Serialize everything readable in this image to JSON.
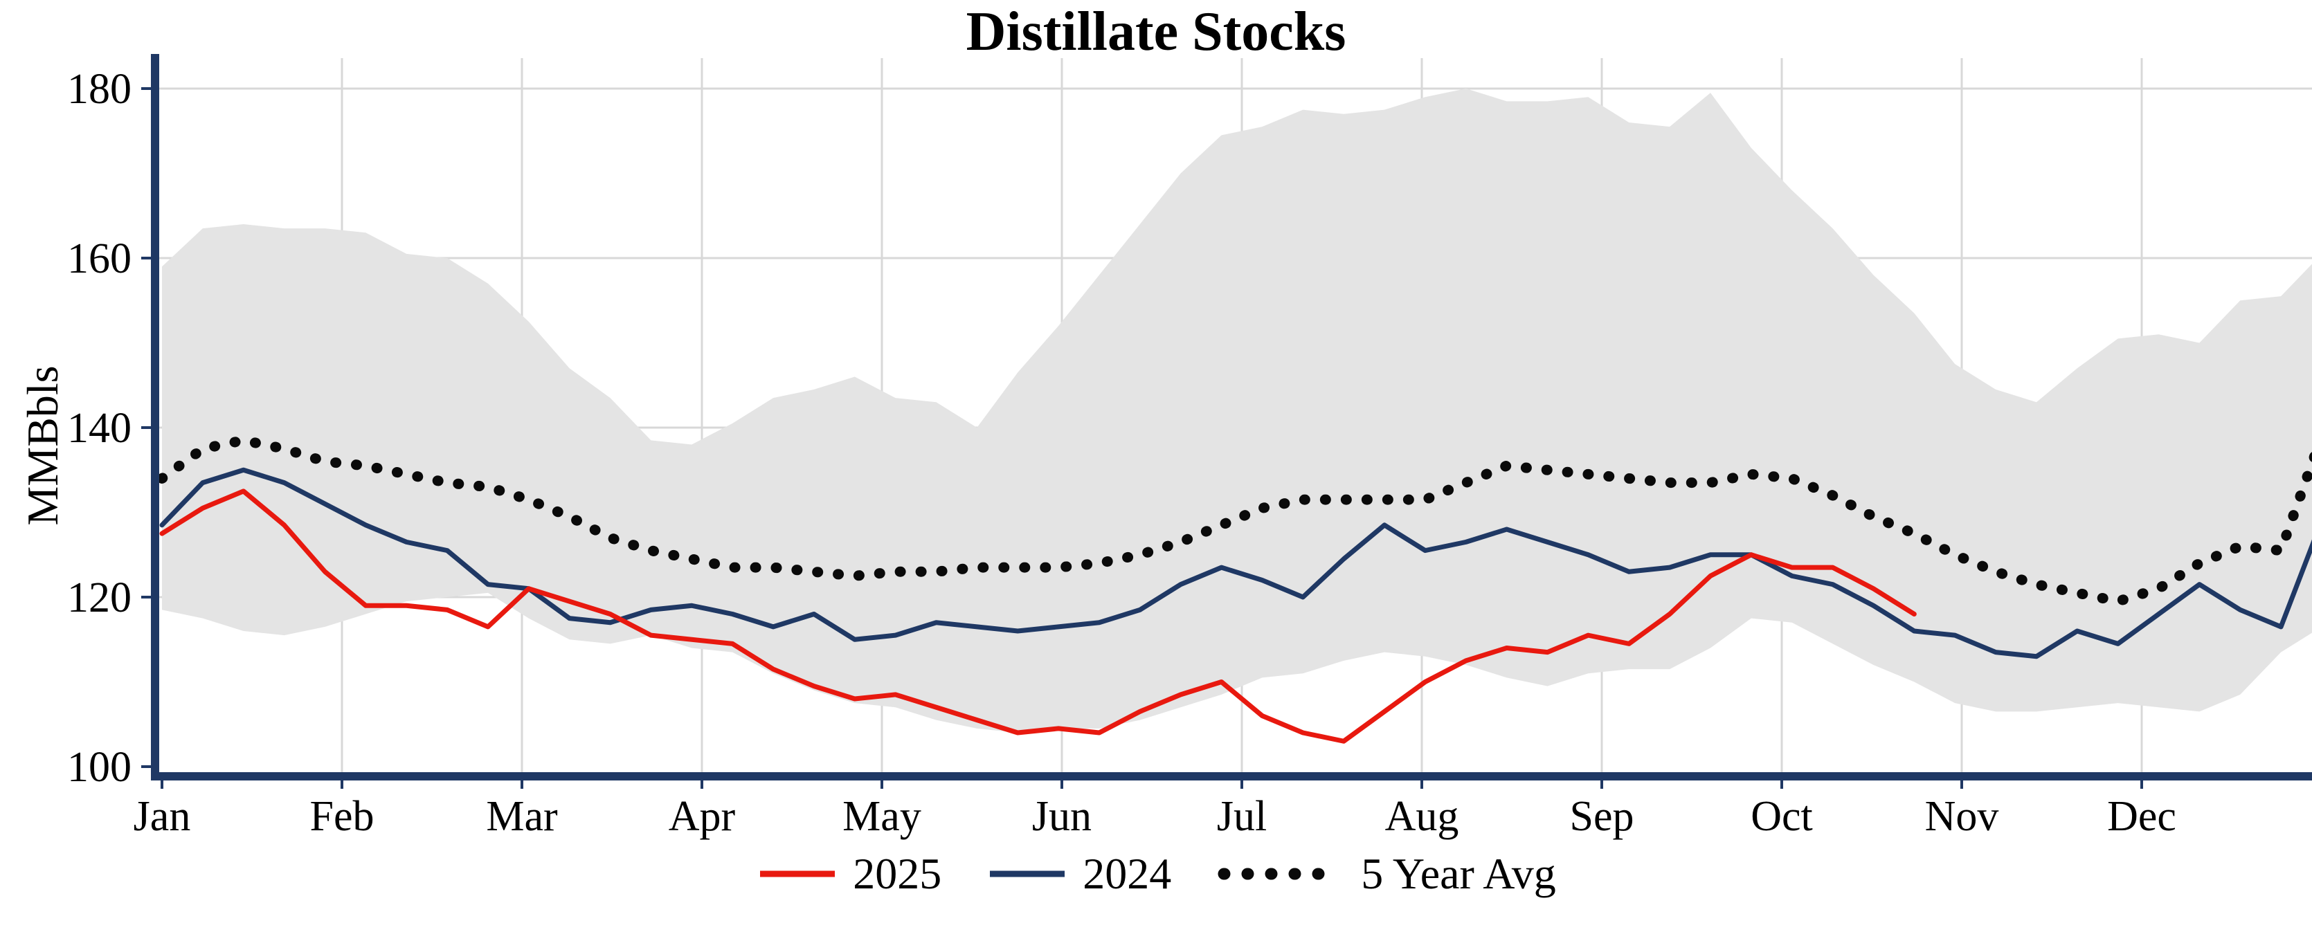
{
  "chart_data": {
    "type": "line",
    "title": "Distillate Stocks",
    "ylabel": "MMBbls",
    "x_tick_labels": [
      "Jan",
      "Feb",
      "Mar",
      "Apr",
      "May",
      "Jun",
      "Jul",
      "Aug",
      "Sep",
      "Oct",
      "Nov",
      "Dec"
    ],
    "y_ticks": [
      100,
      120,
      140,
      160,
      180
    ],
    "ylim": [
      98,
      183
    ],
    "x_sampling": "weekly",
    "grid": true,
    "legend_position": "bottom",
    "colors": {
      "axis": "#1f3864",
      "grid": "#d8d8d8",
      "band": "#e4e4e4",
      "red_2025": "#e8190f",
      "navy_2024": "#1f3864",
      "avg_dotted": "#0a0a0a"
    },
    "band": {
      "name": "5 Year Range",
      "fill": "#e4e4e4",
      "upper": [
        159,
        163.5,
        164,
        163.5,
        163.5,
        163,
        160.5,
        160,
        157,
        152.5,
        147,
        143.5,
        138.5,
        138,
        140.5,
        143.5,
        144.5,
        146,
        143.5,
        143,
        140,
        146.5,
        152,
        158,
        164,
        170,
        174.5,
        175.5,
        177.5,
        177,
        177.5,
        179,
        180,
        178.5,
        178.5,
        179,
        176,
        175.5,
        179.5,
        173,
        168,
        163.5,
        158,
        153.5,
        147.5,
        144.5,
        143,
        147,
        150.5,
        151,
        150,
        155,
        155.5,
        160.5
      ],
      "lower": [
        118.5,
        117.5,
        116,
        115.5,
        116.5,
        118,
        119.5,
        120,
        120.5,
        117.5,
        115,
        114.5,
        115.5,
        114,
        113.5,
        111,
        109,
        107.5,
        107,
        105.5,
        104.5,
        104,
        104.5,
        104.5,
        105.5,
        107,
        108.5,
        110.5,
        111,
        112.5,
        113.5,
        113,
        112,
        110.5,
        109.5,
        111,
        111.5,
        111.5,
        114,
        117.5,
        117,
        114.5,
        112,
        110,
        107.5,
        106.5,
        106.5,
        107,
        107.5,
        107,
        106.5,
        108.5,
        113.5,
        116.5
      ]
    },
    "series": [
      {
        "name": "2025",
        "color": "#e8190f",
        "style": "solid",
        "values": [
          127.5,
          130.5,
          132.5,
          128.5,
          123,
          119,
          119,
          118.5,
          116.5,
          121,
          119.5,
          118,
          115.5,
          115,
          114.5,
          111.5,
          109.5,
          108,
          108.5,
          107,
          105.5,
          104,
          104.5,
          104,
          106.5,
          108.5,
          110,
          106,
          104,
          103,
          106.5,
          110,
          112.5,
          114,
          113.5,
          115.5,
          114.5,
          118,
          122.5,
          125,
          123.5,
          123.5,
          121,
          118
        ]
      },
      {
        "name": "2024",
        "color": "#1f3864",
        "style": "solid",
        "values": [
          128.5,
          133.5,
          135,
          133.5,
          131,
          128.5,
          126.5,
          125.5,
          121.5,
          121,
          117.5,
          117,
          118.5,
          119,
          118,
          116.5,
          118,
          115,
          115.5,
          117,
          116.5,
          116,
          116.5,
          117,
          118.5,
          121.5,
          123.5,
          122,
          120,
          124.5,
          128.5,
          125.5,
          126.5,
          128,
          126.5,
          125,
          123,
          123.5,
          125,
          125,
          122.5,
          121.5,
          119,
          116,
          115.5,
          113.5,
          113,
          116,
          114.5,
          118,
          121.5,
          118.5,
          116.5,
          129
        ]
      },
      {
        "name": "5 Year Avg",
        "color": "#0a0a0a",
        "style": "dotted",
        "values": [
          134,
          137.5,
          138.5,
          137.5,
          136,
          135.5,
          134.5,
          133.5,
          133,
          131.5,
          129.5,
          127,
          125.5,
          124.5,
          123.5,
          123.5,
          123,
          122.5,
          123,
          123,
          123.5,
          123.5,
          123.5,
          124,
          125,
          126.5,
          128.5,
          130.5,
          131.5,
          131.5,
          131.5,
          131.5,
          133.5,
          135.5,
          135,
          134.5,
          134,
          133.5,
          133.5,
          134.5,
          134,
          132,
          129.5,
          127.5,
          125,
          123,
          121.5,
          120.5,
          119.5,
          121,
          124,
          126,
          125.5,
          139
        ]
      }
    ]
  }
}
